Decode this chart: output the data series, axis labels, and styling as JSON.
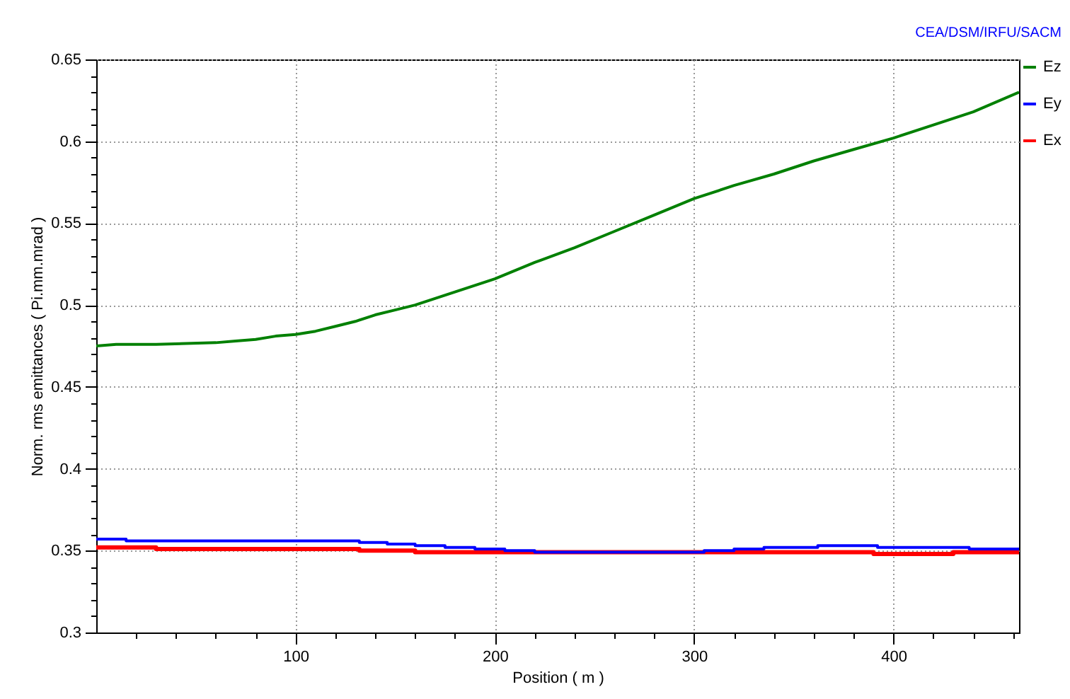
{
  "chart_data": {
    "type": "line",
    "xlabel": "Position ( m )",
    "ylabel": "Norm. rms emittances ( Pi.mm.mrad )",
    "annotations": [
      "CEA/DSM/IRFU/SACM"
    ],
    "xlim": [
      0,
      463
    ],
    "ylim": [
      0.3,
      0.65
    ],
    "xticks": [
      {
        "value": 20,
        "label": null
      },
      {
        "value": 40,
        "label": null
      },
      {
        "value": 60,
        "label": null
      },
      {
        "value": 80,
        "label": null
      },
      100,
      {
        "value": 120,
        "label": null
      },
      {
        "value": 140,
        "label": null
      },
      {
        "value": 160,
        "label": null
      },
      {
        "value": 180,
        "label": null
      },
      200,
      {
        "value": 220,
        "label": null
      },
      {
        "value": 240,
        "label": null
      },
      {
        "value": 260,
        "label": null
      },
      {
        "value": 280,
        "label": null
      },
      300,
      {
        "value": 320,
        "label": null
      },
      {
        "value": 340,
        "label": null
      },
      {
        "value": 360,
        "label": null
      },
      {
        "value": 380,
        "label": null
      },
      400,
      {
        "value": 420,
        "label": null
      },
      {
        "value": 440,
        "label": null
      },
      {
        "value": 460,
        "label": null
      }
    ],
    "yticks": [
      0.3,
      {
        "value": 0.31,
        "label": null
      },
      {
        "value": 0.32,
        "label": null
      },
      {
        "value": 0.33,
        "label": null
      },
      {
        "value": 0.34,
        "label": null
      },
      0.35,
      {
        "value": 0.36,
        "label": null
      },
      {
        "value": 0.37,
        "label": null
      },
      {
        "value": 0.38,
        "label": null
      },
      {
        "value": 0.39,
        "label": null
      },
      0.4,
      {
        "value": 0.41,
        "label": null
      },
      {
        "value": 0.42,
        "label": null
      },
      {
        "value": 0.43,
        "label": null
      },
      {
        "value": 0.44,
        "label": null
      },
      0.45,
      {
        "value": 0.46,
        "label": null
      },
      {
        "value": 0.47,
        "label": null
      },
      {
        "value": 0.48,
        "label": null
      },
      {
        "value": 0.49,
        "label": null
      },
      0.5,
      {
        "value": 0.51,
        "label": null
      },
      {
        "value": 0.52,
        "label": null
      },
      {
        "value": 0.53,
        "label": null
      },
      {
        "value": 0.54,
        "label": null
      },
      0.55,
      {
        "value": 0.56,
        "label": null
      },
      {
        "value": 0.57,
        "label": null
      },
      {
        "value": 0.58,
        "label": null
      },
      {
        "value": 0.59,
        "label": null
      },
      0.6,
      {
        "value": 0.61,
        "label": null
      },
      {
        "value": 0.62,
        "label": null
      },
      {
        "value": 0.63,
        "label": null
      },
      {
        "value": 0.64,
        "label": null
      },
      0.65
    ],
    "grid": true,
    "legend": "top right",
    "marker": "none",
    "line_style": "solid",
    "series": [
      {
        "name": "Ez",
        "color": "#008000",
        "x": [
          0,
          10,
          30,
          60,
          70,
          80,
          90,
          100,
          110,
          120,
          130,
          140,
          150,
          160,
          170,
          180,
          190,
          200,
          220,
          240,
          260,
          280,
          300,
          320,
          340,
          360,
          380,
          400,
          420,
          440,
          463
        ],
        "values": [
          0.475,
          0.476,
          0.476,
          0.477,
          0.478,
          0.479,
          0.481,
          0.482,
          0.484,
          0.487,
          0.49,
          0.494,
          0.497,
          0.5,
          0.504,
          0.508,
          0.512,
          0.516,
          0.526,
          0.535,
          0.545,
          0.555,
          0.565,
          0.573,
          0.58,
          0.588,
          0.595,
          0.602,
          0.61,
          0.618,
          0.63
        ]
      },
      {
        "name": "Ey",
        "color": "#0000ff",
        "type": "step",
        "x": [
          0,
          15,
          132,
          146,
          160,
          175,
          190,
          205,
          220,
          290,
          305,
          320,
          335,
          362,
          392,
          438,
          463
        ],
        "values": [
          0.357,
          0.356,
          0.355,
          0.354,
          0.353,
          0.352,
          0.351,
          0.35,
          0.349,
          0.349,
          0.35,
          0.351,
          0.352,
          0.353,
          0.352,
          0.351,
          0.351
        ]
      },
      {
        "name": "Ex",
        "color": "#ff0000",
        "type": "step",
        "x": [
          0,
          30,
          75,
          132,
          160,
          390,
          430,
          463
        ],
        "values": [
          0.352,
          0.351,
          0.351,
          0.35,
          0.349,
          0.348,
          0.349,
          0.349
        ]
      }
    ]
  }
}
